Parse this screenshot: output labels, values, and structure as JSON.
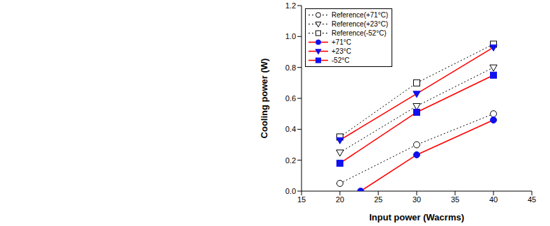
{
  "chart_data": {
    "type": "line",
    "xlabel": "Input power (Wacrms)",
    "ylabel": "Cooling power (W)",
    "xlim": [
      15,
      45
    ],
    "xticks": [
      15,
      20,
      25,
      30,
      35,
      40,
      45
    ],
    "ylim": [
      0,
      1.2
    ],
    "yticks": [
      {
        "value": 0,
        "label": "0.0"
      },
      0.2,
      0.4,
      0.6,
      0.8,
      {
        "value": 1,
        "label": "1.0"
      },
      1.2
    ],
    "grid": false,
    "legend": "upper left",
    "series": [
      {
        "name": "Reference(+71°C)",
        "color": "#000000",
        "marker": "circle_open",
        "line_style": "dotted",
        "x": [
          20,
          30,
          40
        ],
        "values": [
          0.05,
          0.3,
          0.5
        ]
      },
      {
        "name": "Reference(+23°C)",
        "color": "#000000",
        "marker": "triangle_down_open",
        "line_style": "dotted",
        "x": [
          20,
          30,
          40
        ],
        "values": [
          0.25,
          0.55,
          0.8
        ]
      },
      {
        "name": "Reference(-52°C)",
        "color": "#000000",
        "marker": "square_open",
        "line_style": "dotted",
        "x": [
          20,
          30,
          40
        ],
        "values": [
          0.35,
          0.7,
          0.95
        ]
      },
      {
        "name": "+71°C",
        "color": "#ff0000",
        "marker": "circle",
        "line_style": "solid",
        "x": [
          22.7,
          30,
          40
        ],
        "values": [
          0.0,
          0.235,
          0.46
        ]
      },
      {
        "name": "+23°C",
        "color": "#ff0000",
        "marker": "triangle_down",
        "line_style": "solid",
        "x": [
          20,
          30,
          40
        ],
        "values": [
          0.33,
          0.63,
          0.93
        ]
      },
      {
        "name": "-52°C",
        "color": "#ff0000",
        "marker": "square",
        "line_style": "solid",
        "x": [
          20,
          30,
          40
        ],
        "values": [
          0.18,
          0.51,
          0.75
        ]
      }
    ]
  }
}
